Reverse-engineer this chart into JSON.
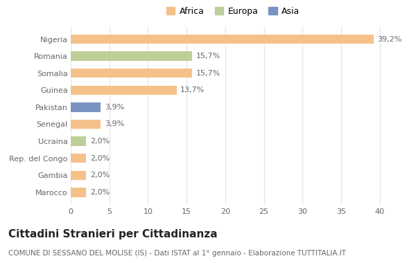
{
  "countries": [
    "Nigeria",
    "Romania",
    "Somalia",
    "Guinea",
    "Pakistan",
    "Senegal",
    "Ucraina",
    "Rep. del Congo",
    "Gambia",
    "Marocco"
  ],
  "values": [
    39.2,
    15.7,
    15.7,
    13.7,
    3.9,
    3.9,
    2.0,
    2.0,
    2.0,
    2.0
  ],
  "labels": [
    "39,2%",
    "15,7%",
    "15,7%",
    "13,7%",
    "3,9%",
    "3,9%",
    "2,0%",
    "2,0%",
    "2,0%",
    "2,0%"
  ],
  "colors": [
    "#F5C18A",
    "#BFCF9A",
    "#F5C18A",
    "#F5C18A",
    "#7B93C0",
    "#F5C18A",
    "#BFCF9A",
    "#F5C18A",
    "#F5C18A",
    "#F5C18A"
  ],
  "legend_labels": [
    "Africa",
    "Europa",
    "Asia"
  ],
  "legend_colors": [
    "#F5C18A",
    "#BFCF9A",
    "#7B93C0"
  ],
  "title": "Cittadini Stranieri per Cittadinanza",
  "subtitle": "COMUNE DI SESSANO DEL MOLISE (IS) - Dati ISTAT al 1° gennaio - Elaborazione TUTTITALIA.IT",
  "xlim": [
    0,
    42
  ],
  "xticks": [
    0,
    5,
    10,
    15,
    20,
    25,
    30,
    35,
    40
  ],
  "background_color": "#FFFFFF",
  "grid_color": "#E8E8E8",
  "bar_height": 0.55,
  "title_fontsize": 11,
  "subtitle_fontsize": 7.5,
  "tick_fontsize": 8,
  "label_fontsize": 8
}
